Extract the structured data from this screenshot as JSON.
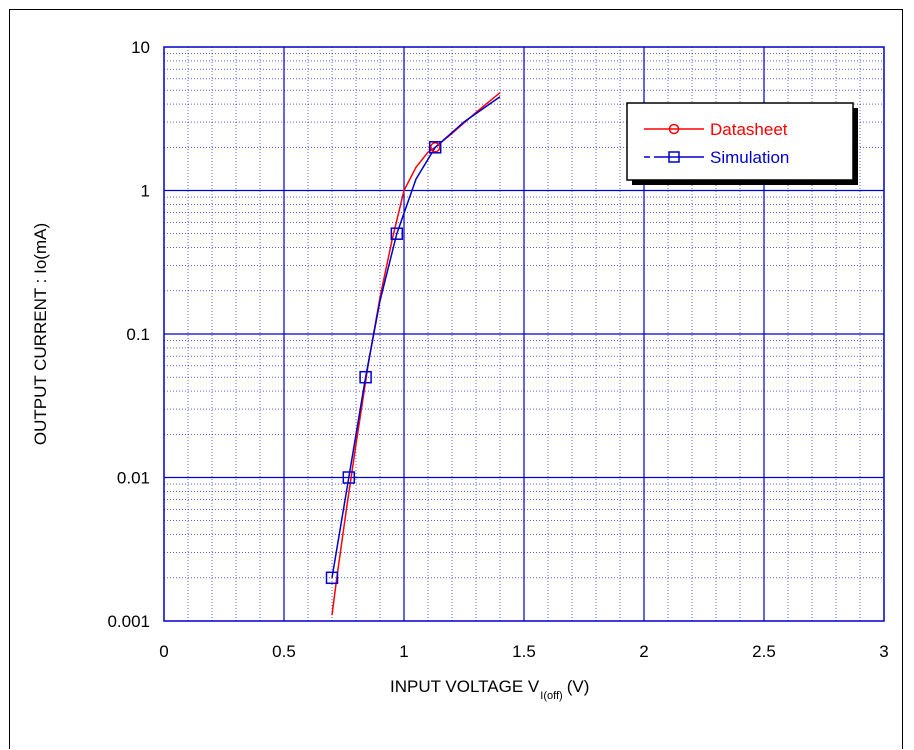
{
  "chart_data": {
    "type": "line",
    "title": "",
    "xlabel": "INPUT VOLTAGE V",
    "xlabel_subscript": "I(off)",
    "xlabel_unit": "(V)",
    "ylabel": "OUTPUT CURRENT : Io(mA)",
    "xlim": [
      0,
      3
    ],
    "ylim": [
      0.001,
      10
    ],
    "yscale": "log",
    "grid": true,
    "legend_position": "top-right",
    "x_ticks": [
      "0",
      "0.5",
      "1",
      "1.5",
      "2",
      "2.5",
      "3"
    ],
    "y_ticks": [
      "0.001",
      "0.01",
      "0.1",
      "1",
      "10"
    ],
    "series": [
      {
        "name": "Datasheet",
        "color": "#ff0000",
        "marker": "circle",
        "x": [
          0.7,
          0.72,
          0.76,
          0.8,
          0.85,
          0.9,
          0.95,
          1.0,
          1.05,
          1.1,
          1.13,
          1.2,
          1.3,
          1.4
        ],
        "y": [
          0.0011,
          0.002,
          0.006,
          0.017,
          0.06,
          0.18,
          0.45,
          1.0,
          1.45,
          1.85,
          2.0,
          2.5,
          3.5,
          4.8
        ],
        "marker_x": [
          1.13
        ],
        "marker_y": [
          2.0
        ]
      },
      {
        "name": "Simulation",
        "color": "#0000cc",
        "marker": "square",
        "x": [
          0.7,
          0.77,
          0.84,
          0.9,
          0.97,
          1.05,
          1.13,
          1.25,
          1.4
        ],
        "y": [
          0.002,
          0.01,
          0.05,
          0.17,
          0.5,
          1.2,
          2.0,
          3.0,
          4.5
        ],
        "marker_x": [
          0.7,
          0.77,
          0.84,
          0.97,
          1.13
        ],
        "marker_y": [
          0.002,
          0.01,
          0.05,
          0.5,
          2.0
        ]
      }
    ]
  }
}
